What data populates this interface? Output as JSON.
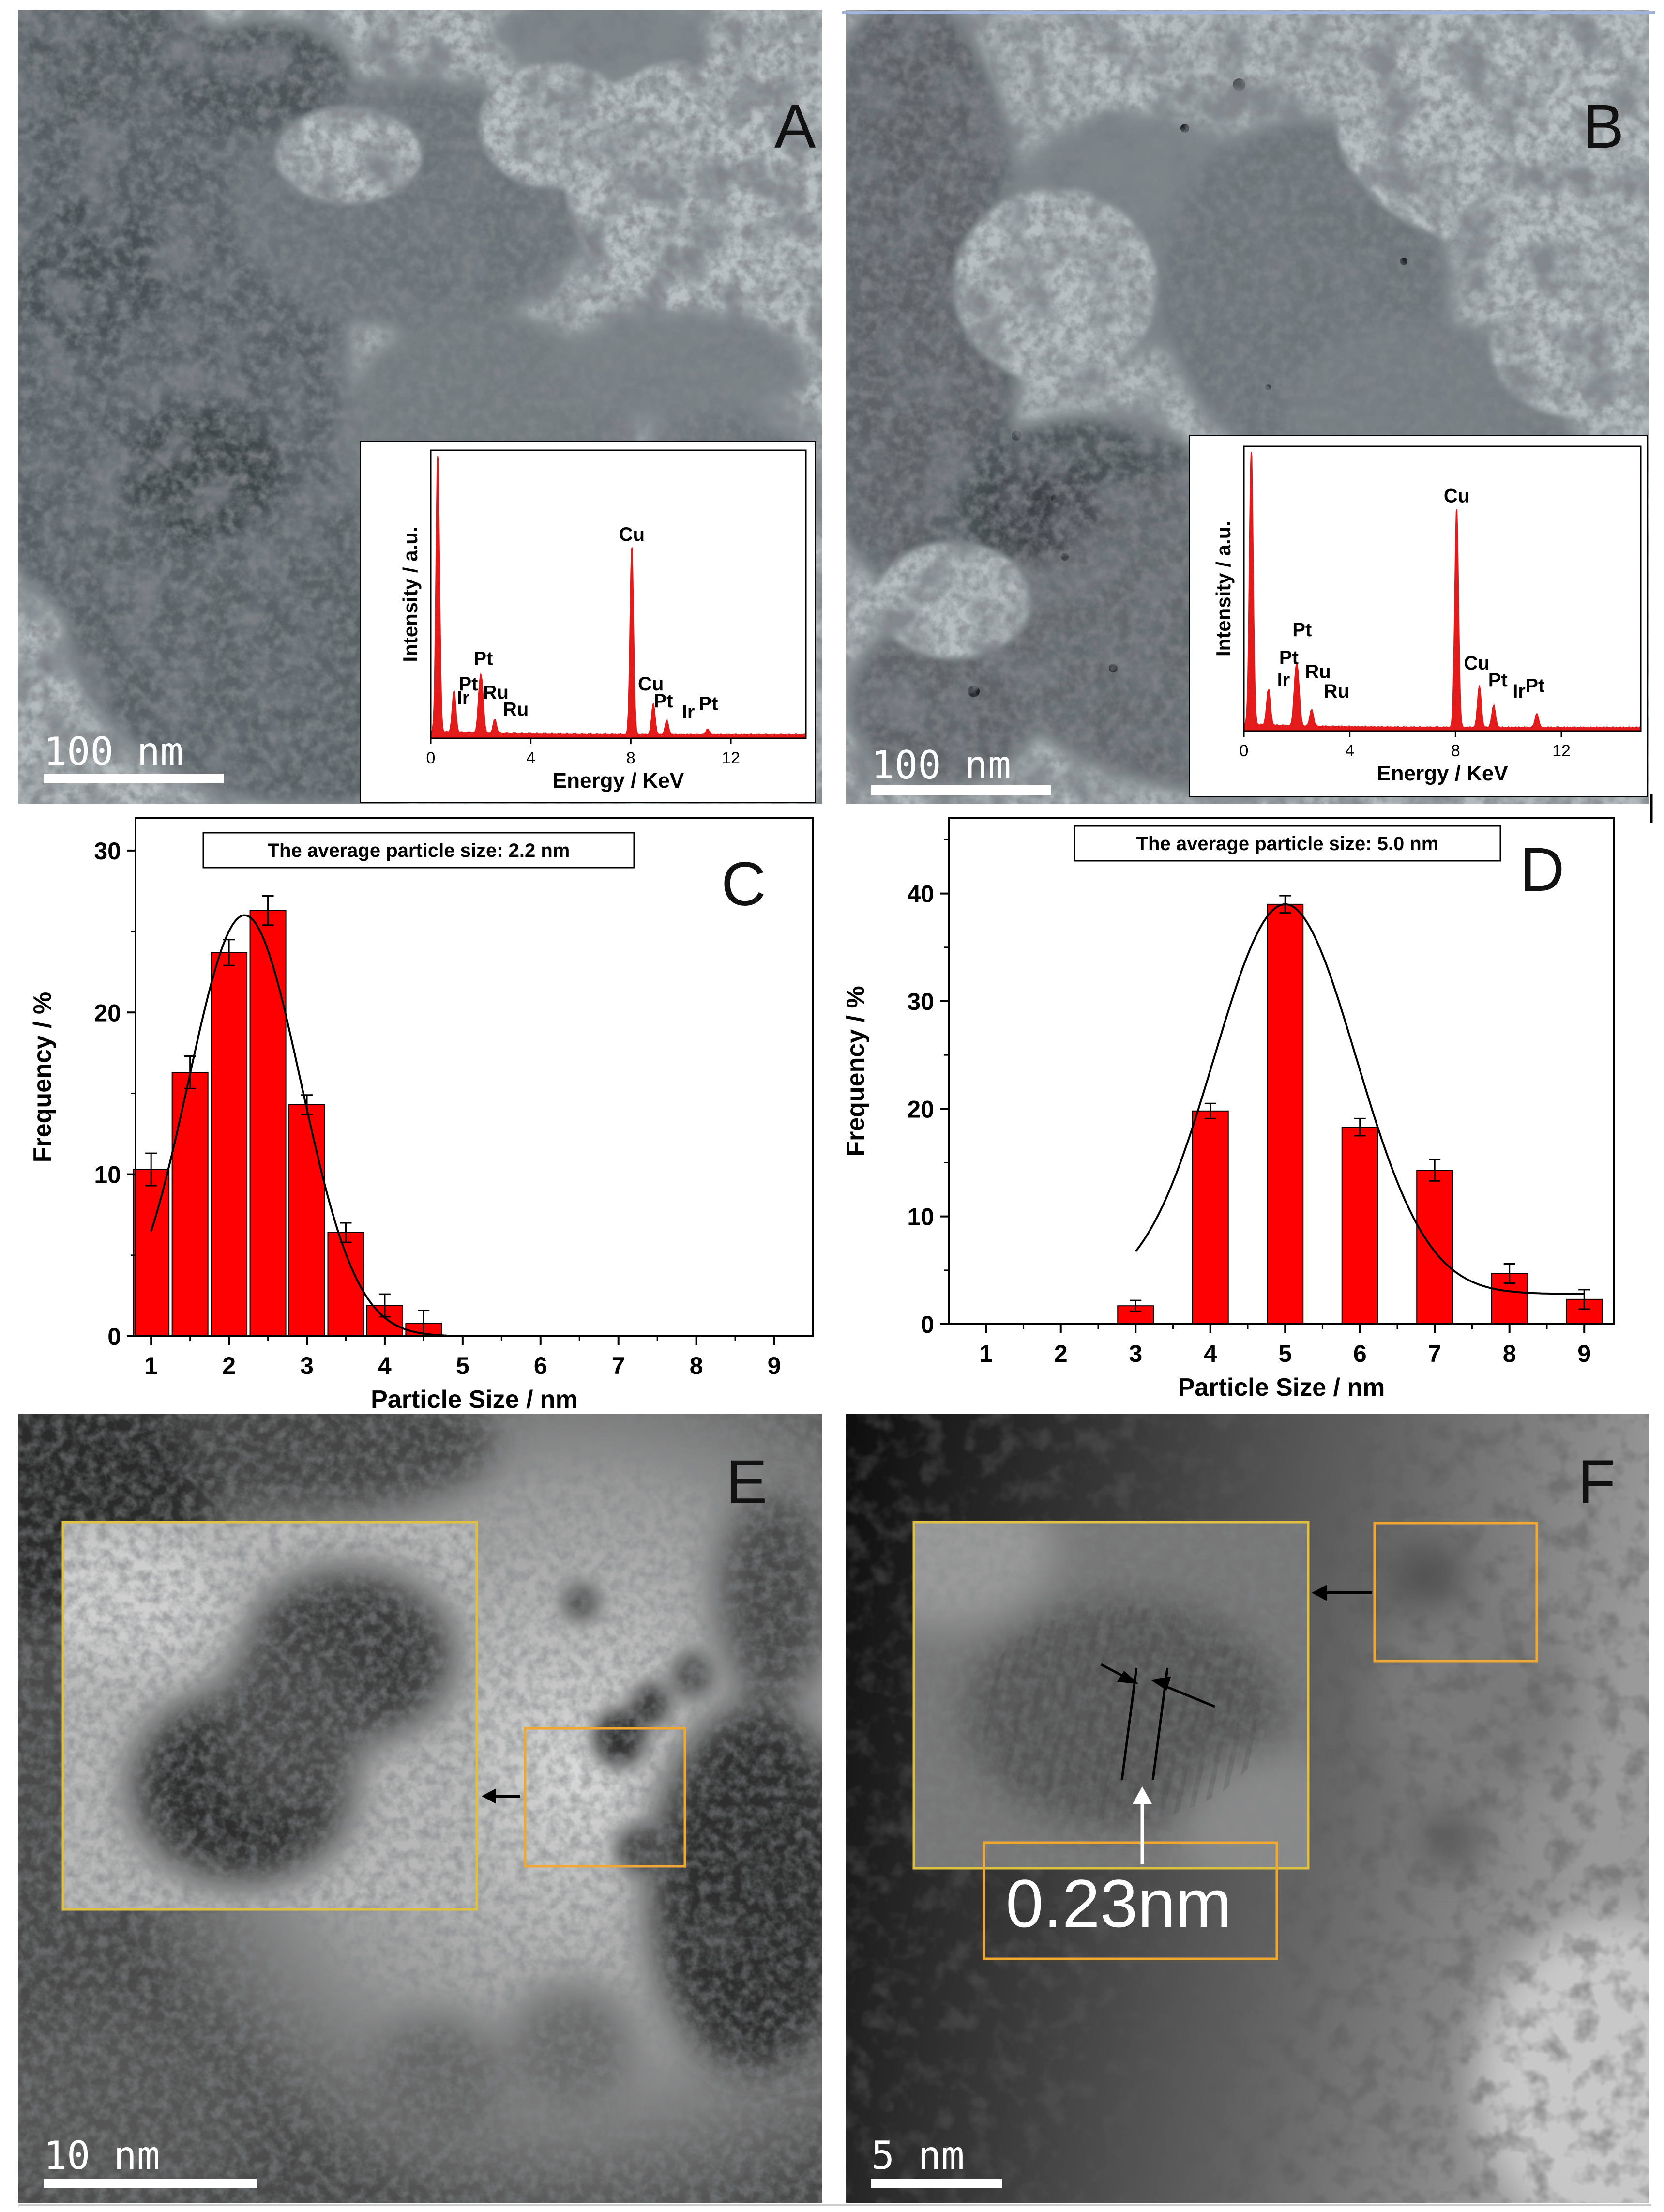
{
  "panels": {
    "A": {
      "letter": "A",
      "scale_bar": "100 nm"
    },
    "B": {
      "letter": "B",
      "scale_bar": "100 nm"
    },
    "C": {
      "letter": "C",
      "note": "The average particle size: 2.2 nm"
    },
    "D": {
      "letter": "D",
      "note": "The average particle size: 5.0 nm"
    },
    "E": {
      "letter": "E",
      "scale_bar": "10 nm"
    },
    "F": {
      "letter": "F",
      "scale_bar": "5 nm",
      "spacing_label": "0.23nm"
    }
  },
  "colors": {
    "bar_fill": "#ff0000",
    "eds_fill": "#e31b1b",
    "inset_box_orange": "#f0a830",
    "inset_box_yellow": "#e8c030"
  },
  "chart_data": [
    {
      "panel": "C",
      "type": "bar",
      "xlabel": "Particle Size / nm",
      "ylabel": "Frequency / %",
      "xlim": [
        0.8,
        9.5
      ],
      "ylim": [
        0,
        32
      ],
      "xticks": [
        1,
        2,
        3,
        4,
        5,
        6,
        7,
        8,
        9
      ],
      "yticks": [
        0,
        10,
        20,
        30
      ],
      "x": [
        1.0,
        1.5,
        2.0,
        2.5,
        3.0,
        3.5,
        4.0,
        4.5
      ],
      "values": [
        10.3,
        16.3,
        23.7,
        26.3,
        14.3,
        6.4,
        1.9,
        0.8
      ],
      "errors": [
        1.0,
        1.0,
        0.8,
        0.9,
        0.6,
        0.6,
        0.7,
        0.8
      ],
      "fit": {
        "type": "gaussian",
        "center": 2.2,
        "amplitude": 26.0,
        "sigma": 0.72,
        "offset": 0,
        "x_range": [
          1.0,
          4.8
        ]
      },
      "annotation": "The average particle size: 2.2 nm"
    },
    {
      "panel": "D",
      "type": "bar",
      "xlabel": "Particle Size / nm",
      "ylabel": "Frequency / %",
      "xlim": [
        0.5,
        9.4
      ],
      "ylim": [
        0,
        47
      ],
      "xticks": [
        1,
        2,
        3,
        4,
        5,
        6,
        7,
        8,
        9
      ],
      "yticks": [
        0,
        10,
        20,
        30,
        40
      ],
      "x": [
        3,
        4,
        5,
        6,
        7,
        8,
        9
      ],
      "values": [
        1.7,
        19.8,
        39.0,
        18.3,
        14.3,
        4.7,
        2.3
      ],
      "errors": [
        0.5,
        0.7,
        0.8,
        0.8,
        1.0,
        0.9,
        0.9
      ],
      "fit": {
        "type": "gaussian",
        "center": 5.0,
        "amplitude": 36.2,
        "sigma": 0.95,
        "offset": 2.8,
        "x_range": [
          3.0,
          9.0
        ]
      },
      "annotation": "The average particle size: 5.0 nm"
    },
    {
      "panel": "A-inset",
      "type": "line",
      "title": "",
      "xlabel": "Energy / KeV",
      "ylabel": "Intensity / a.u.",
      "xlim": [
        0,
        15
      ],
      "xticks": [
        0,
        4,
        8,
        12
      ],
      "peaks": [
        {
          "energy": 0.28,
          "height": 1.0
        },
        {
          "energy": 0.93,
          "height": 0.15
        },
        {
          "energy": 1.95,
          "height": 0.13
        },
        {
          "energy": 2.05,
          "height": 0.14
        },
        {
          "energy": 2.56,
          "height": 0.05
        },
        {
          "energy": 8.04,
          "height": 0.67
        },
        {
          "energy": 8.9,
          "height": 0.11
        },
        {
          "energy": 9.44,
          "height": 0.05
        },
        {
          "energy": 11.07,
          "height": 0.02
        }
      ],
      "annotations": [
        {
          "text": "Cu",
          "energy": 8.04,
          "level": 0.7
        },
        {
          "text": "Pt",
          "energy": 2.1,
          "level": 0.26
        },
        {
          "text": "Pt",
          "energy": 1.5,
          "level": 0.17
        },
        {
          "text": "Ir",
          "energy": 1.3,
          "level": 0.12
        },
        {
          "text": "Ru",
          "energy": 2.6,
          "level": 0.14
        },
        {
          "text": "Ru",
          "energy": 3.4,
          "level": 0.08
        },
        {
          "text": "Cu",
          "energy": 8.8,
          "level": 0.17
        },
        {
          "text": "Pt",
          "energy": 9.3,
          "level": 0.11
        },
        {
          "text": "Ir",
          "energy": 10.3,
          "level": 0.07
        },
        {
          "text": "Pt",
          "energy": 11.1,
          "level": 0.1
        }
      ]
    },
    {
      "panel": "B-inset",
      "type": "line",
      "title": "",
      "xlabel": "Energy / KeV",
      "ylabel": "Intensity / a.u.",
      "xlim": [
        0,
        15
      ],
      "xticks": [
        0,
        4,
        8,
        12
      ],
      "peaks": [
        {
          "energy": 0.28,
          "height": 1.0
        },
        {
          "energy": 0.93,
          "height": 0.13
        },
        {
          "energy": 1.95,
          "height": 0.15
        },
        {
          "energy": 2.05,
          "height": 0.14
        },
        {
          "energy": 2.56,
          "height": 0.06
        },
        {
          "energy": 8.04,
          "height": 0.79
        },
        {
          "energy": 8.9,
          "height": 0.15
        },
        {
          "energy": 9.44,
          "height": 0.08
        },
        {
          "energy": 11.07,
          "height": 0.05
        }
      ],
      "annotations": [
        {
          "text": "Cu",
          "energy": 8.04,
          "level": 0.82
        },
        {
          "text": "Pt",
          "energy": 2.2,
          "level": 0.34
        },
        {
          "text": "Pt",
          "energy": 1.7,
          "level": 0.24
        },
        {
          "text": "Ir",
          "energy": 1.5,
          "level": 0.16
        },
        {
          "text": "Ru",
          "energy": 2.8,
          "level": 0.19
        },
        {
          "text": "Ru",
          "energy": 3.5,
          "level": 0.12
        },
        {
          "text": "Cu",
          "energy": 8.8,
          "level": 0.22
        },
        {
          "text": "Pt",
          "energy": 9.6,
          "level": 0.16
        },
        {
          "text": "Ir",
          "energy": 10.4,
          "level": 0.12
        },
        {
          "text": "Pt",
          "energy": 11.0,
          "level": 0.14
        }
      ]
    }
  ]
}
